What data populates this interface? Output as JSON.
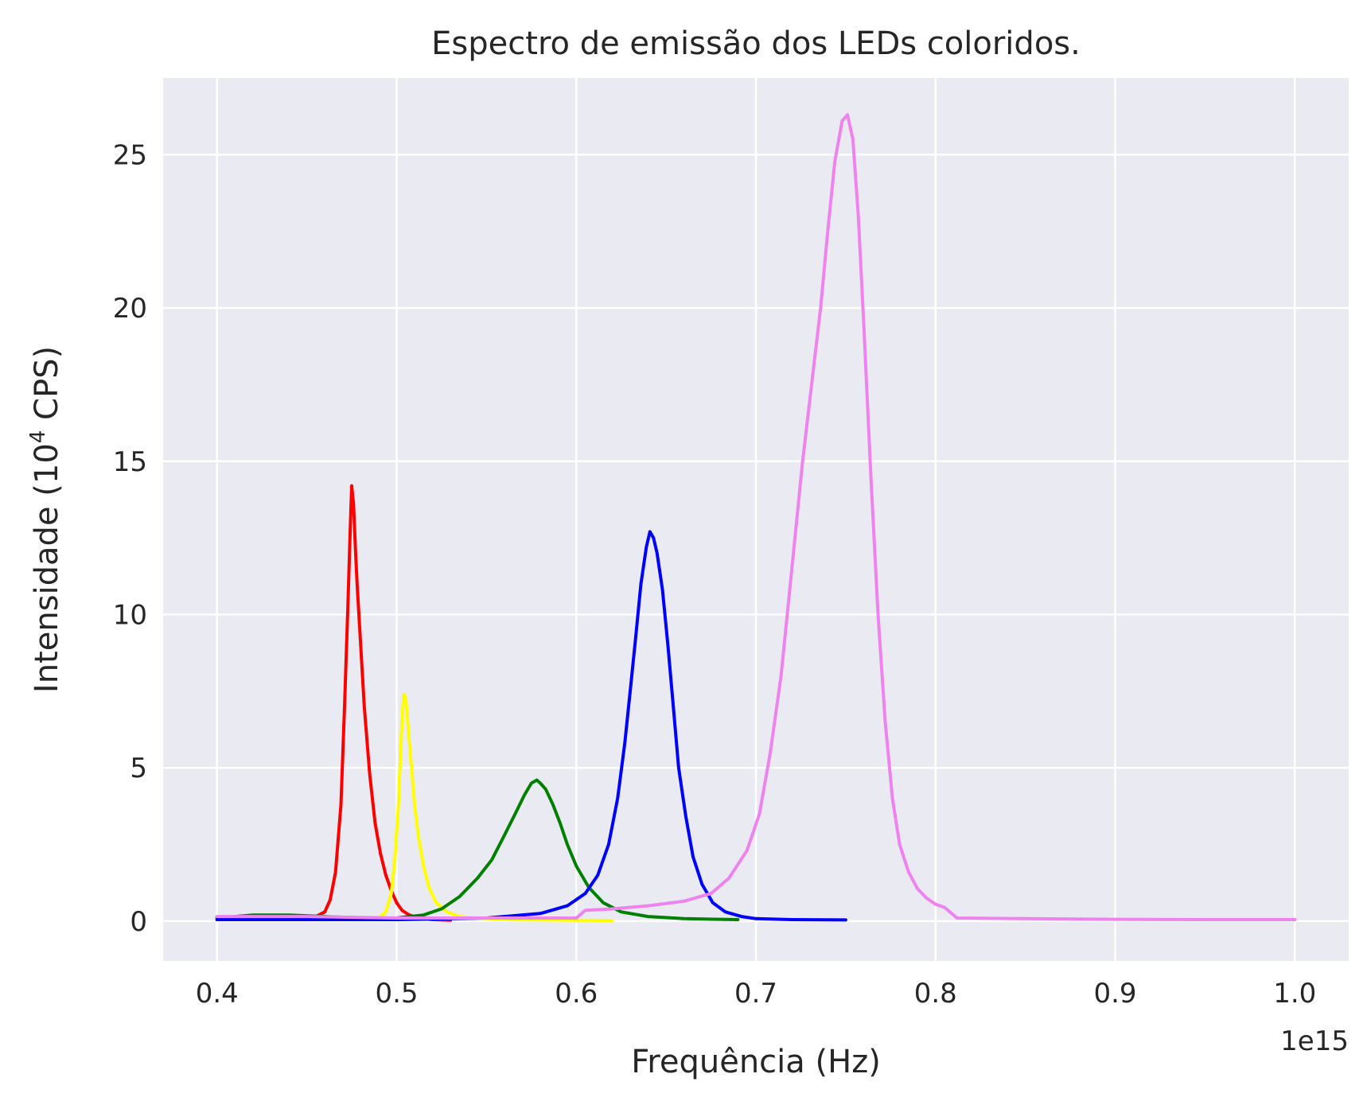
{
  "chart_data": {
    "type": "line",
    "title": "Espectro de emissão dos LEDs coloridos.",
    "xlabel": "Frequência (Hz)",
    "ylabel_main": "Intensidade (10",
    "ylabel_sup": "4",
    "ylabel_end": " CPS)",
    "x_offset_label": "1e15",
    "xlim": [
      0.37,
      1.03
    ],
    "ylim": [
      -1.3,
      27.5
    ],
    "x_ticks": [
      0.4,
      0.5,
      0.6,
      0.7,
      0.8,
      0.9,
      1.0
    ],
    "x_tick_labels": [
      "0.4",
      "0.5",
      "0.6",
      "0.7",
      "0.8",
      "0.9",
      "1.0"
    ],
    "y_ticks": [
      0,
      5,
      10,
      15,
      20,
      25
    ],
    "y_tick_labels": [
      "0",
      "5",
      "10",
      "15",
      "20",
      "25"
    ],
    "grid": true,
    "background": "#eaeaf2",
    "series": [
      {
        "color": "#ff0000",
        "x": [
          0.4,
          0.42,
          0.44,
          0.455,
          0.46,
          0.463,
          0.466,
          0.469,
          0.471,
          0.473,
          0.474,
          0.475,
          0.476,
          0.477,
          0.478,
          0.48,
          0.482,
          0.485,
          0.488,
          0.491,
          0.494,
          0.497,
          0.5,
          0.503,
          0.507,
          0.512,
          0.52,
          0.53
        ],
        "y": [
          0.1,
          0.1,
          0.1,
          0.15,
          0.3,
          0.7,
          1.6,
          3.8,
          7.0,
          10.5,
          12.5,
          14.2,
          13.6,
          12.2,
          11.0,
          9.0,
          7.0,
          4.8,
          3.2,
          2.2,
          1.5,
          1.0,
          0.6,
          0.35,
          0.2,
          0.1,
          0.05,
          0.03
        ]
      },
      {
        "color": "#ffff00",
        "x": [
          0.48,
          0.49,
          0.494,
          0.497,
          0.499,
          0.501,
          0.502,
          0.503,
          0.504,
          0.505,
          0.506,
          0.508,
          0.51,
          0.512,
          0.515,
          0.518,
          0.522,
          0.528,
          0.535,
          0.545,
          0.56,
          0.6,
          0.62
        ],
        "y": [
          0.05,
          0.1,
          0.3,
          0.9,
          2.0,
          3.8,
          5.2,
          6.6,
          7.4,
          7.3,
          6.6,
          5.2,
          3.8,
          2.8,
          1.8,
          1.1,
          0.6,
          0.3,
          0.15,
          0.1,
          0.05,
          0.03,
          0.02
        ]
      },
      {
        "color": "#008000",
        "x": [
          0.4,
          0.42,
          0.44,
          0.46,
          0.48,
          0.5,
          0.515,
          0.525,
          0.535,
          0.545,
          0.553,
          0.56,
          0.566,
          0.571,
          0.575,
          0.578,
          0.58,
          0.583,
          0.587,
          0.591,
          0.595,
          0.6,
          0.607,
          0.615,
          0.625,
          0.64,
          0.66,
          0.69
        ],
        "y": [
          0.1,
          0.2,
          0.2,
          0.15,
          0.1,
          0.1,
          0.2,
          0.4,
          0.8,
          1.4,
          2.0,
          2.8,
          3.5,
          4.1,
          4.5,
          4.6,
          4.5,
          4.3,
          3.8,
          3.2,
          2.5,
          1.8,
          1.1,
          0.6,
          0.3,
          0.15,
          0.08,
          0.05
        ]
      },
      {
        "color": "#0000ff",
        "x": [
          0.4,
          0.45,
          0.5,
          0.55,
          0.58,
          0.595,
          0.605,
          0.612,
          0.618,
          0.623,
          0.627,
          0.63,
          0.633,
          0.636,
          0.639,
          0.641,
          0.643,
          0.645,
          0.648,
          0.651,
          0.654,
          0.657,
          0.661,
          0.665,
          0.67,
          0.676,
          0.683,
          0.692,
          0.7,
          0.72,
          0.75
        ],
        "y": [
          0.05,
          0.05,
          0.05,
          0.1,
          0.25,
          0.5,
          0.9,
          1.5,
          2.5,
          4.0,
          5.8,
          7.5,
          9.2,
          11.0,
          12.2,
          12.7,
          12.5,
          12.0,
          10.8,
          9.0,
          7.0,
          5.0,
          3.4,
          2.1,
          1.2,
          0.6,
          0.3,
          0.15,
          0.08,
          0.05,
          0.04
        ]
      },
      {
        "color": "#ee82ee",
        "x": [
          0.4,
          0.45,
          0.5,
          0.55,
          0.6,
          0.605,
          0.62,
          0.64,
          0.66,
          0.675,
          0.685,
          0.695,
          0.702,
          0.708,
          0.714,
          0.72,
          0.726,
          0.731,
          0.736,
          0.74,
          0.744,
          0.748,
          0.751,
          0.754,
          0.757,
          0.76,
          0.764,
          0.768,
          0.772,
          0.776,
          0.78,
          0.785,
          0.79,
          0.795,
          0.8,
          0.805,
          0.812,
          0.85,
          0.9,
          0.95,
          1.0
        ],
        "y": [
          0.15,
          0.15,
          0.1,
          0.1,
          0.1,
          0.35,
          0.4,
          0.5,
          0.65,
          0.9,
          1.4,
          2.3,
          3.5,
          5.5,
          8.0,
          11.5,
          15.0,
          17.5,
          20.0,
          22.5,
          24.8,
          26.1,
          26.3,
          25.5,
          23.0,
          19.5,
          14.5,
          10.0,
          6.5,
          4.0,
          2.5,
          1.6,
          1.05,
          0.75,
          0.55,
          0.45,
          0.1,
          0.08,
          0.06,
          0.05,
          0.05
        ]
      }
    ]
  }
}
